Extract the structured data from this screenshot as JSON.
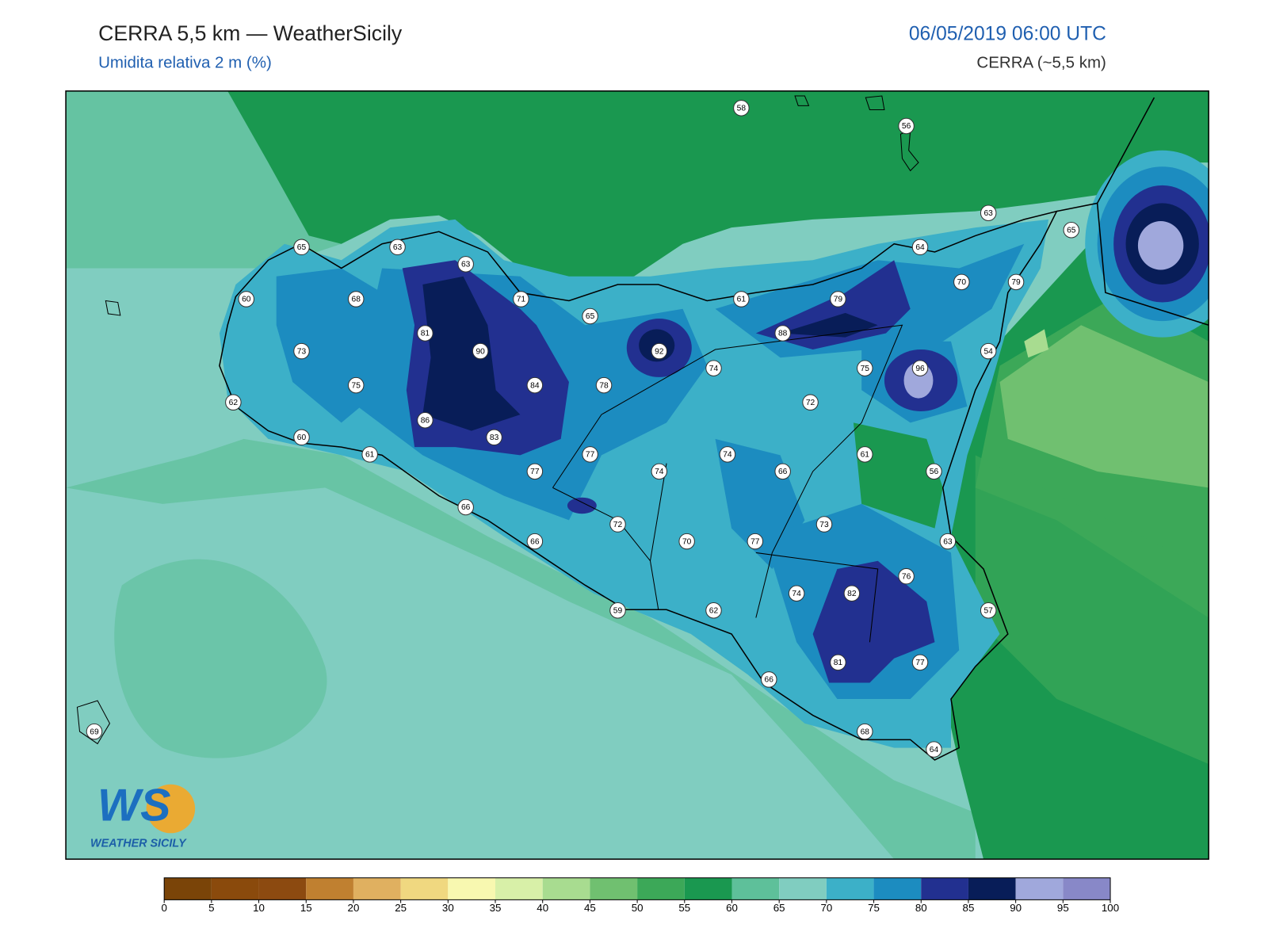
{
  "header": {
    "title": "CERRA 5,5 km — WeatherSicily",
    "subtitle": "Umidita relativa 2 m (%)",
    "date": "06/05/2019 06:00 UTC",
    "model": "CERRA (~5,5 km)"
  },
  "station_values": [
    58,
    56,
    63,
    65,
    64,
    65,
    63,
    63,
    70,
    79,
    60,
    68,
    71,
    61,
    79,
    65,
    81,
    88,
    73,
    90,
    92,
    54,
    74,
    75,
    96,
    84,
    78,
    75,
    62,
    72,
    86,
    60,
    83,
    61,
    77,
    74,
    61,
    77,
    74,
    66,
    56,
    66,
    72,
    73,
    66,
    70,
    77,
    63,
    76,
    74,
    82,
    62,
    59,
    57,
    81,
    77,
    66,
    69,
    68,
    64
  ],
  "colorbar": {
    "ticks": [
      0,
      5,
      10,
      15,
      20,
      25,
      30,
      35,
      40,
      45,
      50,
      55,
      60,
      65,
      70,
      75,
      80,
      85,
      90,
      95,
      100
    ],
    "colors": [
      "#7a4408",
      "#8a4a0c",
      "#8c4a10",
      "#c08030",
      "#e0b060",
      "#f0d880",
      "#f8f8b0",
      "#d8f0a8",
      "#a8dc90",
      "#70c070",
      "#3ca858",
      "#1a9850",
      "#5ec09a",
      "#80cdc0",
      "#3cb0c8",
      "#1c8cc0",
      "#223090",
      "#081d58",
      "#a0a8dc",
      "#8888c8"
    ]
  },
  "logo": {
    "initials": "WS",
    "name": "WEATHER SICILY"
  }
}
